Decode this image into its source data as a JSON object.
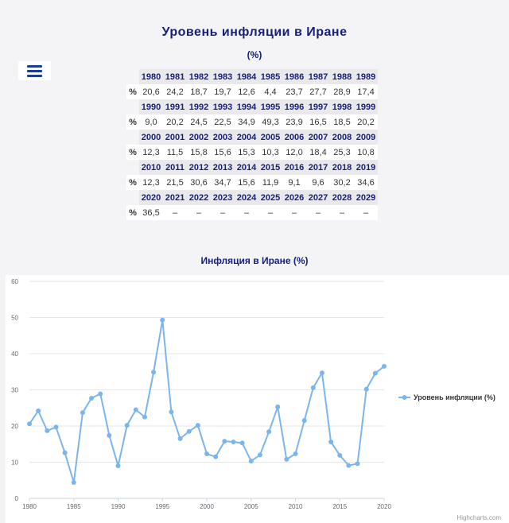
{
  "header": {
    "title": "Уровень инфляции в Иране",
    "unit": "(%)"
  },
  "table": {
    "row_label": "%",
    "blocks": [
      {
        "years": [
          "1980",
          "1981",
          "1982",
          "1983",
          "1984",
          "1985",
          "1986",
          "1987",
          "1988",
          "1989"
        ],
        "values": [
          "20,6",
          "24,2",
          "18,7",
          "19,7",
          "12,6",
          "4,4",
          "23,7",
          "27,7",
          "28,9",
          "17,4"
        ]
      },
      {
        "years": [
          "1990",
          "1991",
          "1992",
          "1993",
          "1994",
          "1995",
          "1996",
          "1997",
          "1998",
          "1999"
        ],
        "values": [
          "9,0",
          "20,2",
          "24,5",
          "22,5",
          "34,9",
          "49,3",
          "23,9",
          "16,5",
          "18,5",
          "20,2"
        ]
      },
      {
        "years": [
          "2000",
          "2001",
          "2002",
          "2003",
          "2004",
          "2005",
          "2006",
          "2007",
          "2008",
          "2009"
        ],
        "values": [
          "12,3",
          "11,5",
          "15,8",
          "15,6",
          "15,3",
          "10,3",
          "12,0",
          "18,4",
          "25,3",
          "10,8"
        ]
      },
      {
        "years": [
          "2010",
          "2011",
          "2012",
          "2013",
          "2014",
          "2015",
          "2016",
          "2017",
          "2018",
          "2019"
        ],
        "values": [
          "12,3",
          "21,5",
          "30,6",
          "34,7",
          "15,6",
          "11,9",
          "9,1",
          "9,6",
          "30,2",
          "34,6"
        ]
      },
      {
        "years": [
          "2020",
          "2021",
          "2022",
          "2023",
          "2024",
          "2025",
          "2026",
          "2027",
          "2028",
          "2029"
        ],
        "values": [
          "36,5",
          "–",
          "–",
          "–",
          "–",
          "–",
          "–",
          "–",
          "–",
          "–"
        ]
      }
    ]
  },
  "chart_data": {
    "type": "line",
    "title": "Инфляция в Иране (%)",
    "xlabel": "",
    "ylabel": "",
    "xlim": [
      1980,
      2020
    ],
    "ylim": [
      0,
      60
    ],
    "x_ticks": [
      1980,
      1985,
      1990,
      1995,
      2000,
      2005,
      2010,
      2015,
      2020
    ],
    "y_ticks": [
      0,
      10,
      20,
      30,
      40,
      50,
      60
    ],
    "grid": true,
    "legend_position": "right",
    "color": "#7cb5ec",
    "series": [
      {
        "name": "Уровень инфляции (%)",
        "x": [
          1980,
          1981,
          1982,
          1983,
          1984,
          1985,
          1986,
          1987,
          1988,
          1989,
          1990,
          1991,
          1992,
          1993,
          1994,
          1995,
          1996,
          1997,
          1998,
          1999,
          2000,
          2001,
          2002,
          2003,
          2004,
          2005,
          2006,
          2007,
          2008,
          2009,
          2010,
          2011,
          2012,
          2013,
          2014,
          2015,
          2016,
          2017,
          2018,
          2019,
          2020
        ],
        "values": [
          20.6,
          24.2,
          18.7,
          19.7,
          12.6,
          4.4,
          23.7,
          27.7,
          28.9,
          17.4,
          9.0,
          20.2,
          24.5,
          22.5,
          34.9,
          49.3,
          23.9,
          16.5,
          18.5,
          20.2,
          12.3,
          11.5,
          15.8,
          15.6,
          15.3,
          10.3,
          12.0,
          18.4,
          25.3,
          10.8,
          12.3,
          21.5,
          30.6,
          34.7,
          15.6,
          11.9,
          9.1,
          9.6,
          30.2,
          34.6,
          36.5
        ]
      }
    ],
    "credits": "Highcharts.com"
  }
}
